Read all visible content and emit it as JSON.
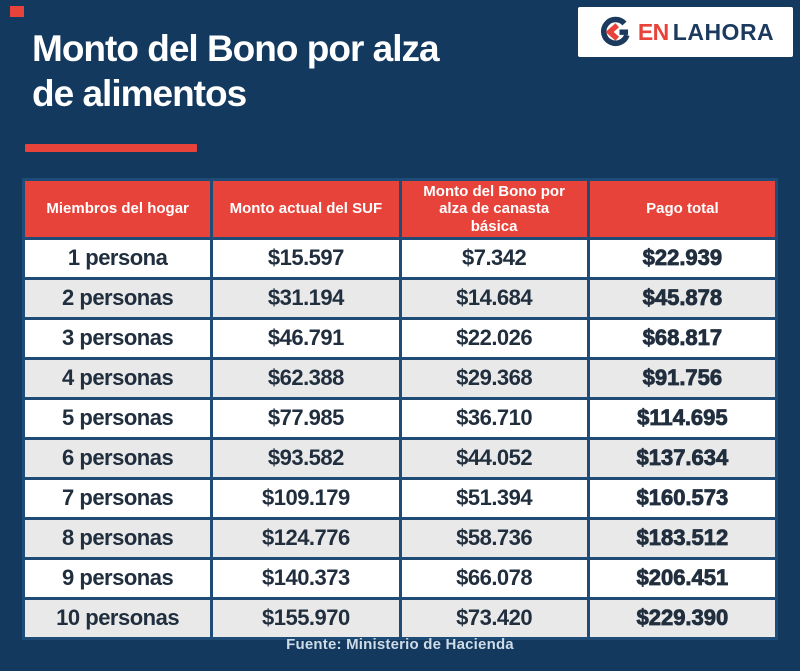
{
  "page": {
    "background_color": "#14395F",
    "accent_red": "#E8433A",
    "border_navy": "#1F4C77",
    "alt_row_gray": "#E9E9E9"
  },
  "header": {
    "title_line1": "Monto del Bono por alza",
    "title_line2": "de alimentos",
    "logo": {
      "word_en": "EN",
      "word_lahora": "LAHORA",
      "icon": "enlahora-arrow-icon"
    }
  },
  "table": {
    "columns": [
      "Miembros del hogar",
      "Monto actual del SUF",
      "Monto del Bono por alza de canasta básica",
      "Pago total"
    ],
    "rows": [
      {
        "label": "1 persona",
        "suf": "$15.597",
        "bono": "$7.342",
        "total": "$22.939"
      },
      {
        "label": "2 personas",
        "suf": "$31.194",
        "bono": "$14.684",
        "total": "$45.878"
      },
      {
        "label": "3 personas",
        "suf": "$46.791",
        "bono": "$22.026",
        "total": "$68.817"
      },
      {
        "label": "4 personas",
        "suf": "$62.388",
        "bono": "$29.368",
        "total": "$91.756"
      },
      {
        "label": "5 personas",
        "suf": "$77.985",
        "bono": "$36.710",
        "total": "$114.695"
      },
      {
        "label": "6 personas",
        "suf": "$93.582",
        "bono": "$44.052",
        "total": "$137.634"
      },
      {
        "label": "7 personas",
        "suf": "$109.179",
        "bono": "$51.394",
        "total": "$160.573"
      },
      {
        "label": "8 personas",
        "suf": "$124.776",
        "bono": "$58.736",
        "total": "$183.512"
      },
      {
        "label": "9 personas",
        "suf": "$140.373",
        "bono": "$66.078",
        "total": "$206.451"
      },
      {
        "label": "10 personas",
        "suf": "$155.970",
        "bono": "$73.420",
        "total": "$229.390"
      }
    ]
  },
  "footer": {
    "source": "Fuente: Ministerio de Hacienda"
  },
  "chart_data": {
    "type": "table",
    "title": "Monto del Bono por alza de alimentos",
    "columns": [
      "Miembros del hogar",
      "Monto actual del SUF",
      "Monto del Bono por alza de canasta básica",
      "Pago total"
    ],
    "rows": [
      [
        "1 persona",
        15597,
        7342,
        22939
      ],
      [
        "2 personas",
        31194,
        14684,
        45878
      ],
      [
        "3 personas",
        46791,
        22026,
        68817
      ],
      [
        "4 personas",
        62388,
        29368,
        91756
      ],
      [
        "5 personas",
        77985,
        36710,
        114695
      ],
      [
        "6 personas",
        93582,
        44052,
        137634
      ],
      [
        "7 personas",
        109179,
        51394,
        160573
      ],
      [
        "8 personas",
        124776,
        58736,
        183512
      ],
      [
        "9 personas",
        140373,
        66078,
        206451
      ],
      [
        "10 personas",
        155970,
        73420,
        229390
      ]
    ],
    "currency": "CLP ($, miles con punto)",
    "source": "Fuente: Ministerio de Hacienda"
  }
}
